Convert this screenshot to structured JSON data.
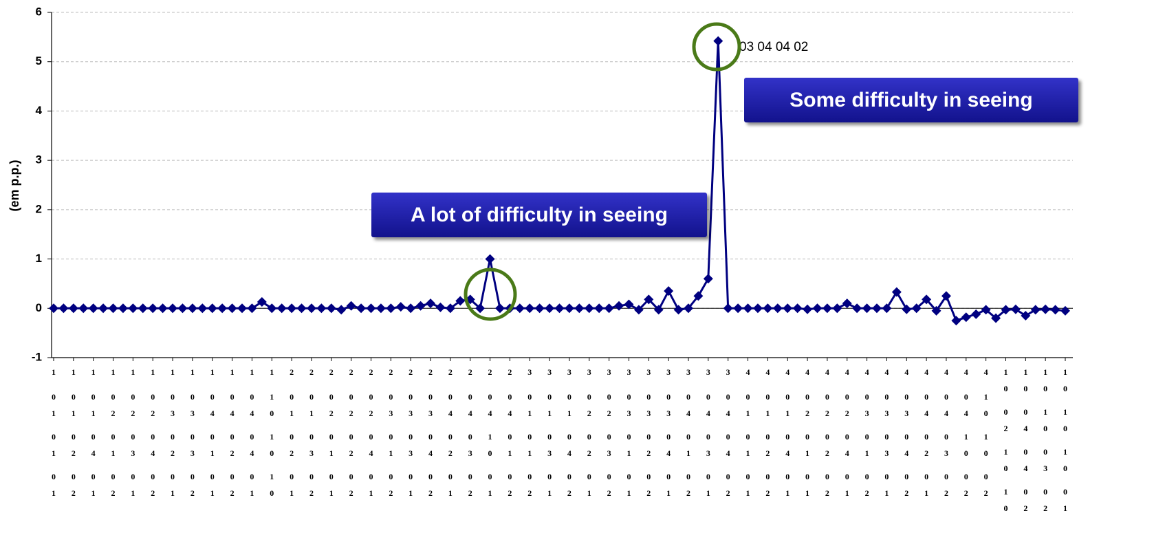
{
  "chart_data": {
    "type": "line",
    "y_label": "(em p.p.)",
    "color": "#000080",
    "grid": true,
    "ylim": [
      -1,
      6
    ],
    "yticks": [
      -1,
      0,
      1,
      2,
      3,
      4,
      5,
      6
    ],
    "point_label": "03 04 04 02",
    "annotations": [
      "A lot of difficulty in seeing",
      "Some difficulty in seeing"
    ],
    "categories": [
      [
        "1",
        "01",
        "01",
        "01"
      ],
      null,
      [
        "1",
        "01",
        "02",
        "02"
      ],
      null,
      [
        "1",
        "01",
        "04",
        "01"
      ],
      null,
      [
        "1",
        "02",
        "01",
        "02"
      ],
      null,
      [
        "1",
        "02",
        "03",
        "01"
      ],
      null,
      [
        "1",
        "02",
        "04",
        "02"
      ],
      null,
      [
        "1",
        "03",
        "02",
        "01"
      ],
      null,
      [
        "1",
        "03",
        "03",
        "02"
      ],
      null,
      [
        "1",
        "04",
        "01",
        "01"
      ],
      null,
      [
        "1",
        "04",
        "02",
        "02"
      ],
      null,
      [
        "1",
        "04",
        "04",
        "01"
      ],
      null,
      [
        "1",
        "10",
        "10",
        "10"
      ],
      null,
      [
        "2",
        "01",
        "02",
        "01"
      ],
      null,
      [
        "2",
        "01",
        "03",
        "02"
      ],
      null,
      [
        "2",
        "02",
        "01",
        "01"
      ],
      null,
      [
        "2",
        "02",
        "02",
        "02"
      ],
      null,
      [
        "2",
        "02",
        "04",
        "01"
      ],
      null,
      [
        "2",
        "03",
        "01",
        "02"
      ],
      null,
      [
        "2",
        "03",
        "03",
        "01"
      ],
      null,
      [
        "2",
        "03",
        "04",
        "02"
      ],
      null,
      [
        "2",
        "04",
        "02",
        "01"
      ],
      null,
      [
        "2",
        "04",
        "03",
        "02"
      ],
      null,
      [
        "2",
        "04",
        "10",
        "01"
      ],
      null,
      [
        "2",
        "04",
        "01",
        "02"
      ],
      null,
      [
        "3",
        "01",
        "01",
        "02"
      ],
      null,
      [
        "3",
        "01",
        "03",
        "01"
      ],
      null,
      [
        "3",
        "01",
        "04",
        "02"
      ],
      null,
      [
        "3",
        "02",
        "02",
        "01"
      ],
      null,
      [
        "3",
        "02",
        "03",
        "02"
      ],
      null,
      [
        "3",
        "03",
        "01",
        "01"
      ],
      null,
      [
        "3",
        "03",
        "02",
        "02"
      ],
      null,
      [
        "3",
        "03",
        "04",
        "01"
      ],
      null,
      [
        "3",
        "04",
        "01",
        "02"
      ],
      null,
      [
        "3",
        "04",
        "03",
        "01"
      ],
      null,
      [
        "3",
        "04",
        "04",
        "02"
      ],
      null,
      [
        "4",
        "01",
        "01",
        "01"
      ],
      null,
      [
        "4",
        "01",
        "02",
        "02"
      ],
      null,
      [
        "4",
        "01",
        "04",
        "01"
      ],
      null,
      [
        "4",
        "02",
        "01",
        "01"
      ],
      null,
      [
        "4",
        "02",
        "02",
        "02"
      ],
      null,
      [
        "4",
        "02",
        "04",
        "01"
      ],
      null,
      [
        "4",
        "03",
        "01",
        "02"
      ],
      null,
      [
        "4",
        "03",
        "03",
        "01"
      ],
      null,
      [
        "4",
        "03",
        "04",
        "02"
      ],
      null,
      [
        "4",
        "04",
        "02",
        "01"
      ],
      null,
      [
        "4",
        "04",
        "03",
        "02"
      ],
      null,
      [
        "4",
        "04",
        "10",
        "02"
      ],
      null,
      [
        "4",
        "10",
        "10",
        "02"
      ],
      null,
      [
        "10",
        "02",
        "10",
        "10"
      ],
      null,
      [
        "10",
        "04",
        "04",
        "02"
      ],
      null,
      [
        "10",
        "10",
        "03",
        "02"
      ],
      null,
      [
        "10",
        "10",
        "10",
        "01"
      ]
    ],
    "values": [
      0,
      0,
      0,
      0,
      0,
      0,
      0,
      0,
      0,
      0,
      0,
      0,
      0,
      0,
      0,
      0,
      0,
      0,
      0,
      0,
      0,
      0.13,
      0,
      0,
      0,
      0,
      0,
      0,
      0,
      -0.03,
      0.05,
      0,
      0,
      0,
      0,
      0.03,
      0,
      0.05,
      0.1,
      0.02,
      0,
      0.15,
      0.18,
      0,
      1,
      0,
      0,
      0,
      0,
      0,
      0,
      0,
      0,
      0,
      0,
      0,
      0,
      0.05,
      0.08,
      -0.03,
      0.18,
      -0.03,
      0.35,
      -0.03,
      0,
      0.25,
      0.6,
      5.42,
      0,
      0,
      0,
      0,
      0,
      0,
      0,
      0,
      -0.02,
      0,
      0,
      0,
      0.1,
      0,
      0,
      0,
      0,
      0.33,
      -0.02,
      0,
      0.18,
      -0.05,
      0.25,
      -0.25,
      -0.18,
      -0.12,
      -0.03,
      -0.2,
      -0.03,
      -0.02,
      -0.15,
      -0.03,
      -0.02,
      -0.03,
      -0.05
    ]
  }
}
